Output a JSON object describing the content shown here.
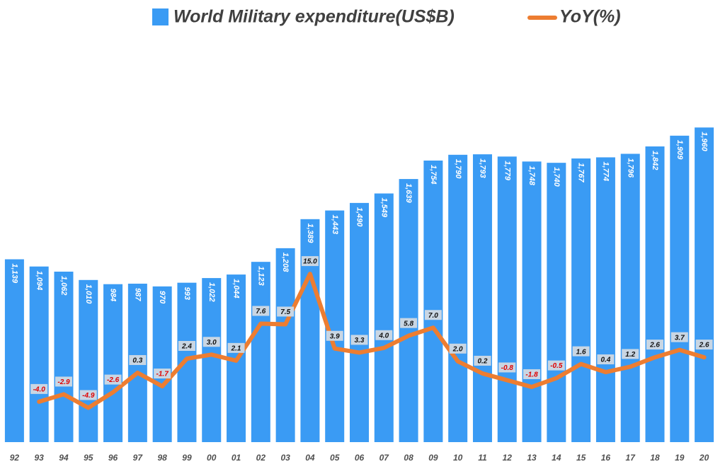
{
  "chart_data": {
    "type": "combo",
    "categories": [
      "92",
      "93",
      "94",
      "95",
      "96",
      "97",
      "98",
      "99",
      "00",
      "01",
      "02",
      "03",
      "04",
      "05",
      "06",
      "07",
      "08",
      "09",
      "10",
      "11",
      "12",
      "13",
      "14",
      "15",
      "16",
      "17",
      "18",
      "19",
      "20"
    ],
    "series": [
      {
        "name": "World Military expenditure(US$B)",
        "type": "bar",
        "color": "#3a9bf4",
        "values": [
          1139,
          1094,
          1062,
          1010,
          984,
          987,
          970,
          993,
          1022,
          1044,
          1123,
          1208,
          1389,
          1443,
          1490,
          1549,
          1639,
          1754,
          1790,
          1793,
          1779,
          1748,
          1740,
          1767,
          1774,
          1796,
          1842,
          1909,
          1960
        ],
        "value_labels": [
          "1,139",
          "1,094",
          "1,062",
          "1,010",
          "984",
          "987",
          "970",
          "993",
          "1,022",
          "1,044",
          "1,123",
          "1,208",
          "1,389",
          "1,443",
          "1,490",
          "1,549",
          "1,639",
          "1,754",
          "1,790",
          "1,793",
          "1,779",
          "1,748",
          "1,740",
          "1,767",
          "1,774",
          "1,796",
          "1,842",
          "1,909",
          "1,960"
        ]
      },
      {
        "name": "YoY(%)",
        "type": "line",
        "color": "#ed7d31",
        "axis": "y2",
        "negative_label_color": "#e00000",
        "values": [
          null,
          -4.0,
          -2.9,
          -4.9,
          -2.6,
          0.3,
          -1.7,
          2.4,
          3.0,
          2.1,
          7.6,
          7.5,
          15.0,
          3.9,
          3.3,
          4.0,
          5.8,
          7.0,
          2.0,
          0.2,
          -0.8,
          -1.8,
          -0.5,
          1.6,
          0.4,
          1.2,
          2.6,
          3.7,
          2.6
        ],
        "value_labels": [
          null,
          "-4.0",
          "-2.9",
          "-4.9",
          "-2.6",
          "0.3",
          "-1.7",
          "2.4",
          "3.0",
          "2.1",
          "7.6",
          "7.5",
          "15.0",
          "3.9",
          "3.3",
          "4.0",
          "5.8",
          "7.0",
          "2.0",
          "0.2",
          "-0.8",
          "-1.8",
          "-0.5",
          "1.6",
          "0.4",
          "1.2",
          "2.6",
          "3.7",
          "2.6"
        ]
      }
    ],
    "ylim": [
      0,
      2600
    ],
    "y2lim": [
      -10,
      52
    ],
    "grid": false
  }
}
